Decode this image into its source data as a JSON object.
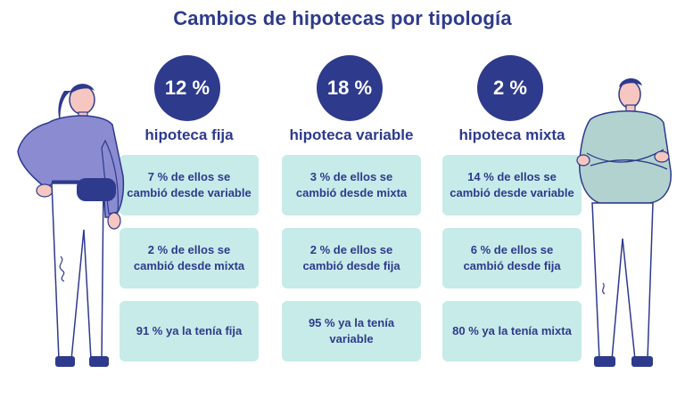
{
  "title": "Cambios de hipotecas por tipología",
  "columns": [
    {
      "percent": "12 %",
      "label": "hipoteca fija",
      "boxes": [
        "7 % de ellos se cambió desde variable",
        "2 % de ellos se cambió desde mixta",
        "91 % ya la tenía fija"
      ]
    },
    {
      "percent": "18 %",
      "label": "hipoteca variable",
      "boxes": [
        "3 % de ellos se cambió desde mixta",
        "2 % de ellos se cambió desde fija",
        "95 % ya la tenía variable"
      ]
    },
    {
      "percent": "2 %",
      "label": "hipoteca mixta",
      "boxes": [
        "14 % de ellos se cambió desde variable",
        "6 % de ellos se cambió desde fija",
        "80 % ya la tenía mixta"
      ]
    }
  ],
  "colors": {
    "navy": "#2e3a8c",
    "box": "#c7ebe8"
  },
  "illustrations": [
    "woman-with-fanny-pack-illustration",
    "man-with-crossed-arms-illustration"
  ]
}
